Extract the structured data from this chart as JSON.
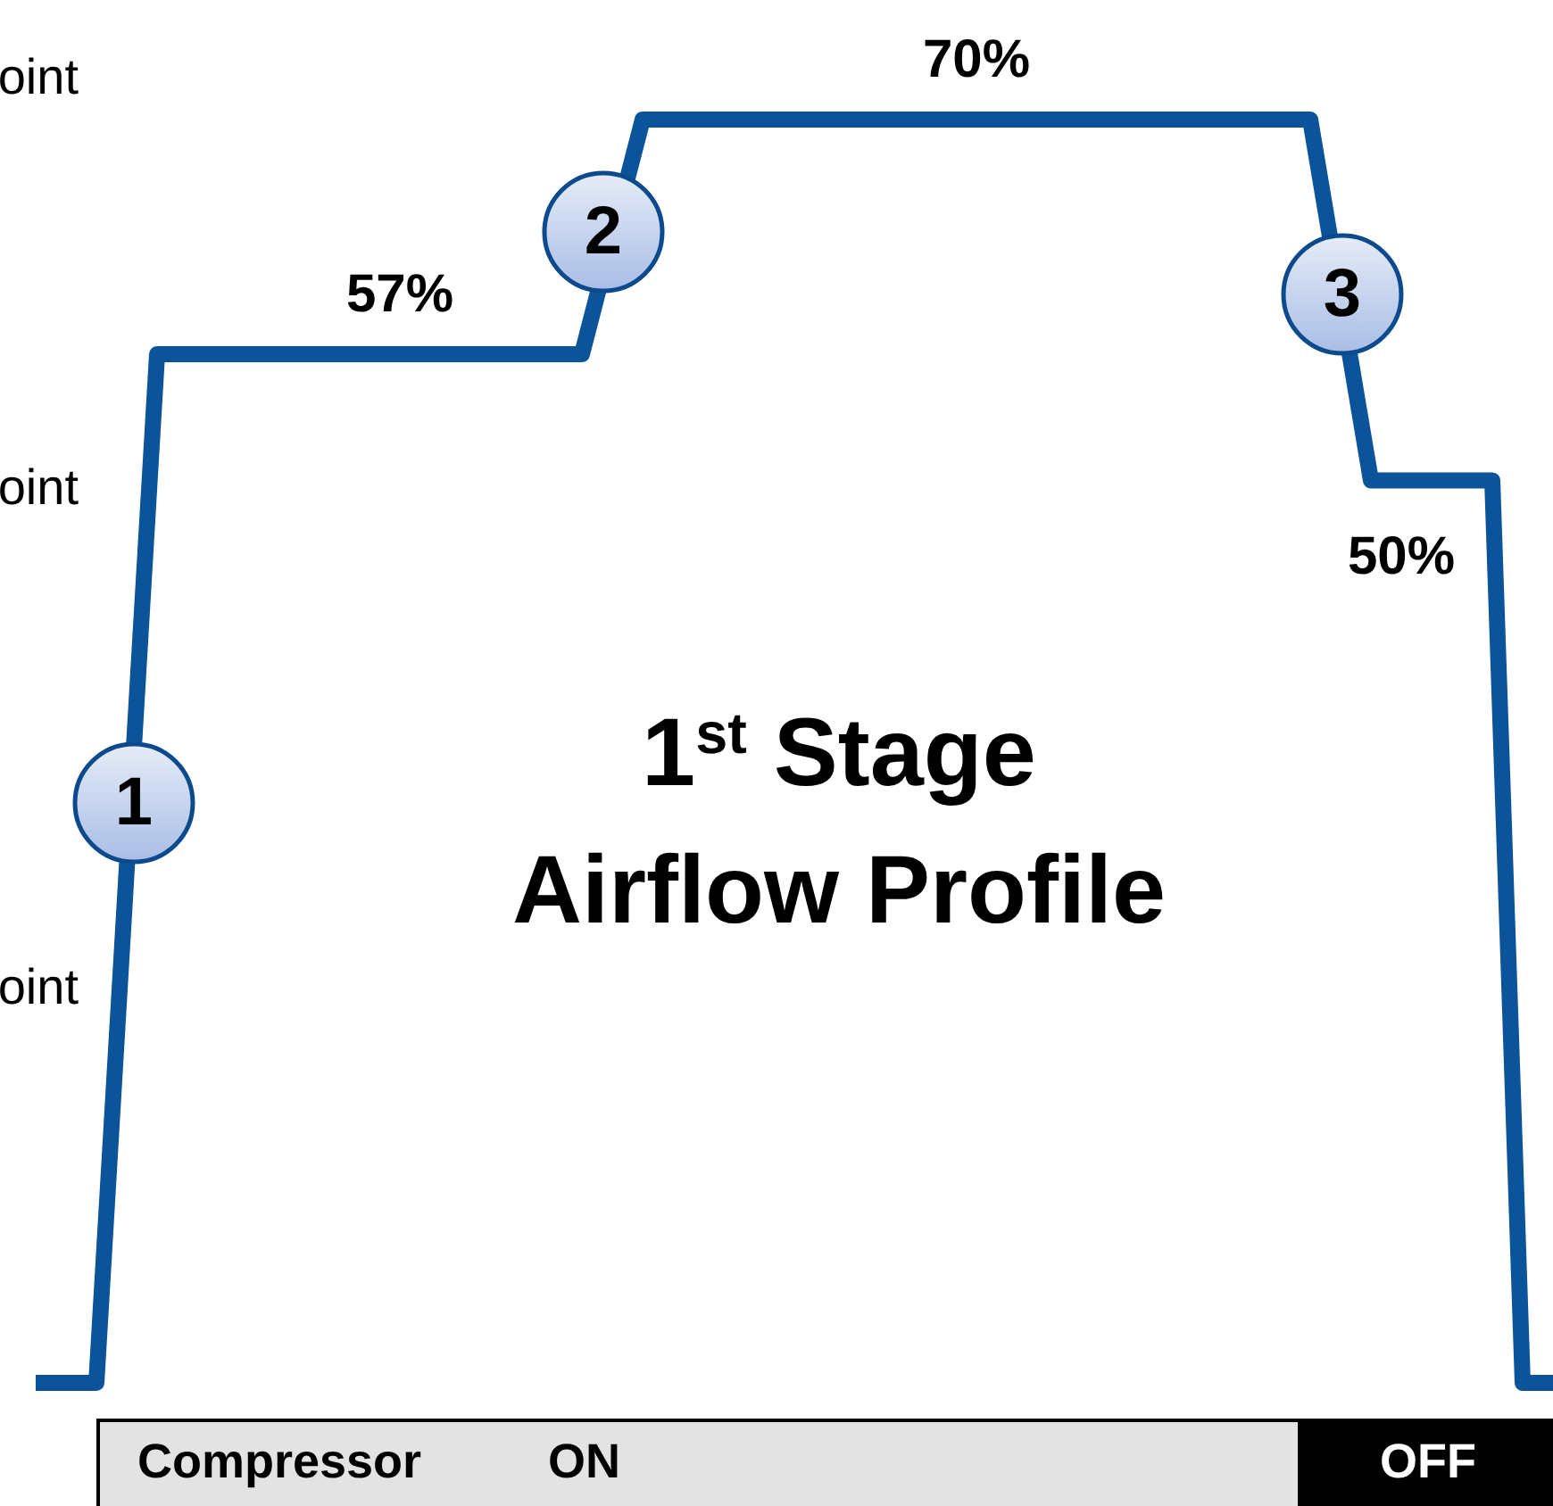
{
  "chart_data": {
    "type": "line",
    "title": "1$^{st}$ Stage Airflow Profile",
    "categories": [
      null,
      null,
      null,
      null,
      null,
      null,
      null,
      null,
      null,
      null,
      null,
      null,
      null,
      null,
      null,
      null,
      null,
      null,
      null,
      null,
      null,
      null,
      null,
      null,
      null,
      null,
      null,
      null,
      null,
      null,
      null,
      null,
      null,
      null,
      null,
      null,
      null,
      null,
      null,
      null,
      null,
      null,
      null,
      null,
      null,
      null,
      null,
      null,
      null,
      null,
      null
    ],
    "series": [
      {
        "color": "#0b5499",
        "values": [
          0,
          0,
          0,
          28.5,
          57,
          57,
          57,
          57,
          57,
          57,
          57,
          57,
          57,
          57,
          57,
          57,
          57,
          57,
          57,
          null,
          70,
          70,
          70,
          70,
          70,
          70,
          70,
          70,
          70,
          70,
          70,
          70,
          70,
          70,
          70,
          70,
          70,
          70,
          70,
          70,
          70,
          70,
          70,
          null,
          50,
          50,
          50,
          50,
          50,
          0,
          0
        ],
        "value_labels": [
          null,
          null,
          null,
          null,
          null,
          null,
          null,
          null,
          null,
          null,
          null,
          null,
          "57%",
          null,
          null,
          null,
          null,
          null,
          null,
          null,
          null,
          null,
          null,
          null,
          null,
          null,
          null,
          null,
          null,
          null,
          null,
          "70%",
          null,
          null,
          null,
          null,
          null,
          null,
          null,
          null,
          null,
          null,
          null,
          null,
          null,
          "50%",
          null,
          null,
          null,
          null,
          null
        ]
      }
    ],
    "annotations": [
      "oint",
      "oint",
      "oint",
      "1",
      "2",
      "3",
      "Compressor",
      "ON",
      "OFF"
    ]
  }
}
